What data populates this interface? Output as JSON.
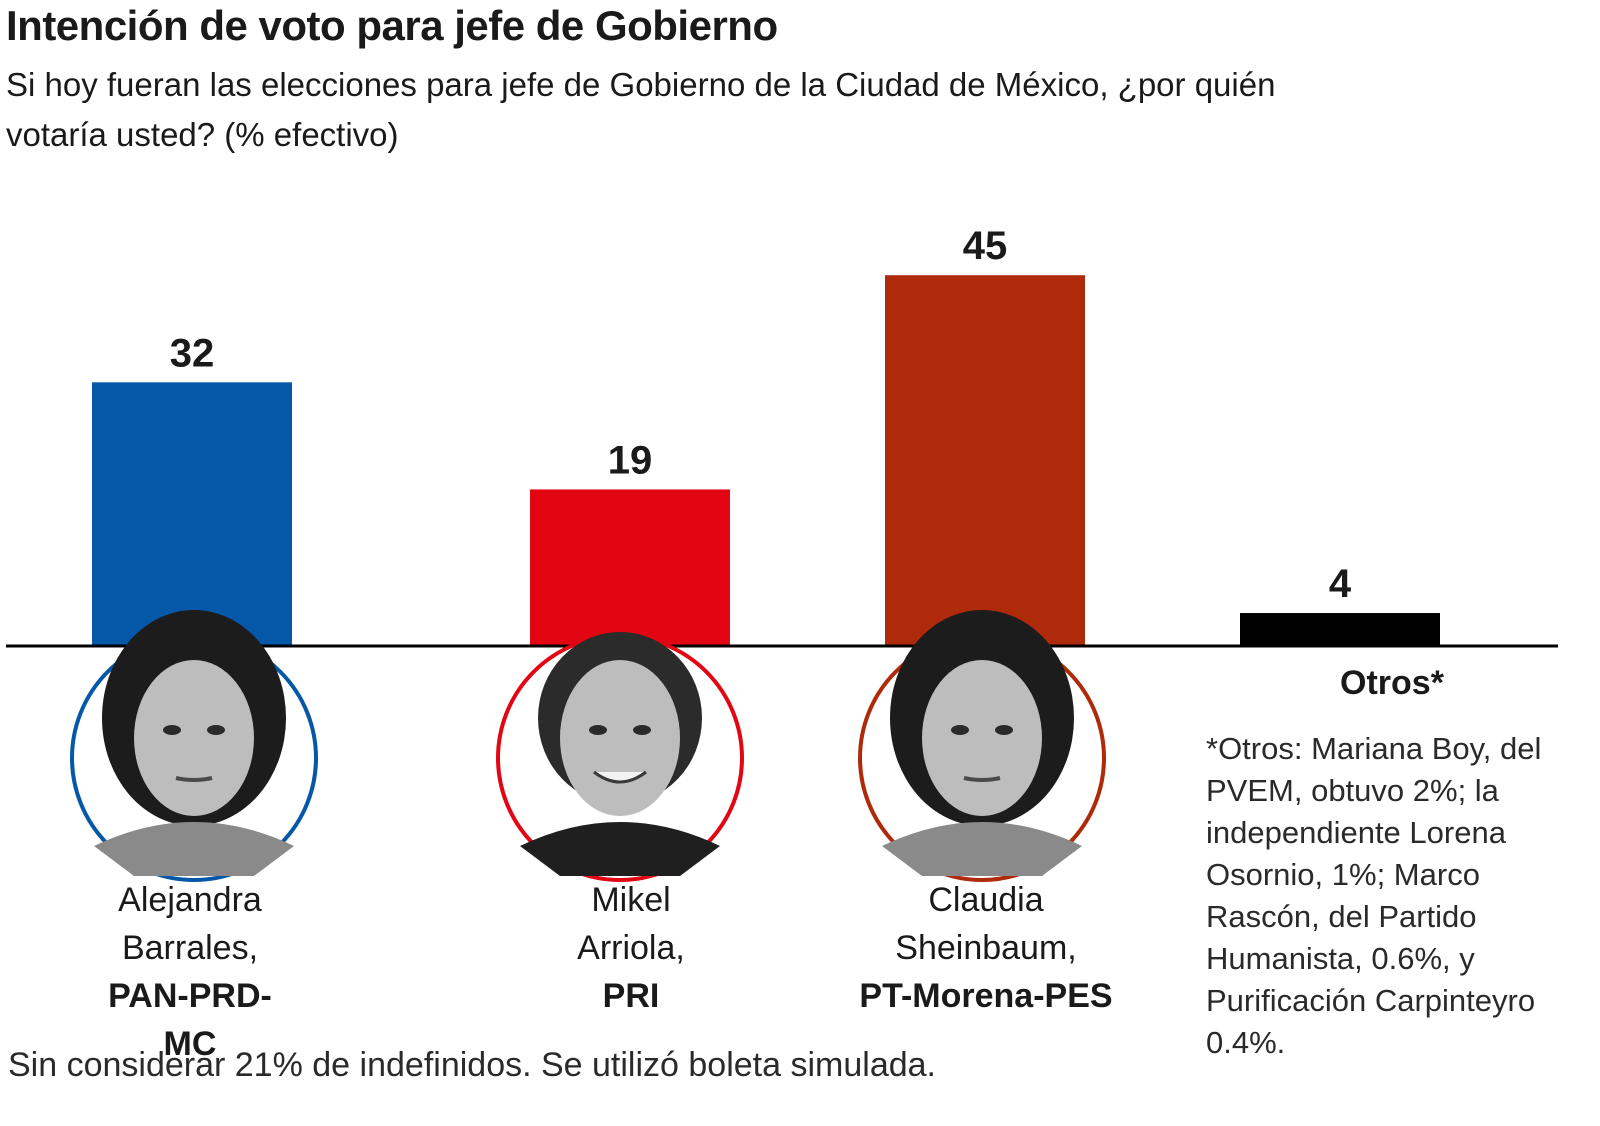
{
  "title": "Intención de voto para jefe de Gobierno",
  "subtitle": "Si hoy fueran las elecciones para jefe de Gobierno de la Ciudad de México, ¿por quién votaría usted? (% efectivo)",
  "footnote": "Sin considerar 21% de indefinidos. Se utilizó boleta simulada.",
  "otros_note": "*Otros: Mariana Boy, del PVEM, obtuvo 2%; la independiente Lorena Osornio, 1%; Marco Rascón, del Partido Humanista, 0.6%, y Purificación Carpinteyro 0.4%.",
  "candidates": [
    {
      "first": "Alejandra",
      "last": "Barrales,",
      "party": "PAN-PRD-MC",
      "photo": "portrait-woman-icon"
    },
    {
      "first": "Mikel",
      "last": "Arriola,",
      "party": "PRI",
      "photo": "portrait-man-icon"
    },
    {
      "first": "Claudia",
      "last": "Sheinbaum,",
      "party": "PT-Morena-PES",
      "photo": "portrait-woman-icon"
    },
    {
      "label": "Otros*"
    }
  ],
  "chart_data": {
    "type": "bar",
    "title": "Intención de voto para jefe de Gobierno",
    "categories": [
      "Alejandra Barrales, PAN-PRD-MC",
      "Mikel Arriola, PRI",
      "Claudia Sheinbaum, PT-Morena-PES",
      "Otros*"
    ],
    "values": [
      32,
      19,
      45,
      4
    ],
    "data_labels": [
      "32",
      "19",
      "45",
      "4"
    ],
    "colors": [
      "#0558a7",
      "#e20613",
      "#ae2a0b",
      "#000000"
    ],
    "ylim": [
      0,
      45
    ],
    "grid": false,
    "legend": "none"
  }
}
